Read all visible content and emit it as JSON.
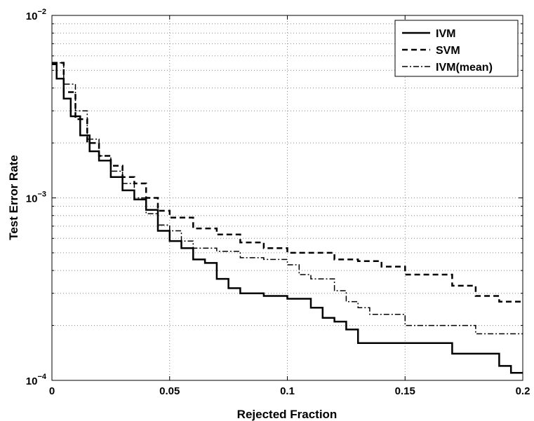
{
  "chart_data": {
    "type": "line",
    "xlabel": "Rejected Fraction",
    "ylabel": "Test Error Rate",
    "xlim": [
      0,
      0.2
    ],
    "ylim": [
      0.0001,
      0.01
    ],
    "y_scale": "log",
    "grid": true,
    "legend_position": "top-right",
    "x_ticks": [
      {
        "value": 0,
        "label": "0"
      },
      {
        "value": 0.05,
        "label": "0.05"
      },
      {
        "value": 0.1,
        "label": "0.1"
      },
      {
        "value": 0.15,
        "label": "0.15"
      },
      {
        "value": 0.2,
        "label": "0.2"
      }
    ],
    "y_ticks": [
      {
        "value": 0.0001,
        "base": "10",
        "exp": "−4"
      },
      {
        "value": 0.001,
        "base": "10",
        "exp": "−3"
      },
      {
        "value": 0.01,
        "base": "10",
        "exp": "−2"
      }
    ],
    "series": [
      {
        "name": "IVM",
        "style": "solid",
        "points": [
          [
            0,
            0.0054
          ],
          [
            0.002,
            0.0045
          ],
          [
            0.005,
            0.0035
          ],
          [
            0.008,
            0.0028
          ],
          [
            0.012,
            0.0022
          ],
          [
            0.016,
            0.0018
          ],
          [
            0.02,
            0.0016
          ],
          [
            0.025,
            0.0013
          ],
          [
            0.03,
            0.0011
          ],
          [
            0.035,
            0.00098
          ],
          [
            0.04,
            0.00086
          ],
          [
            0.045,
            0.00066
          ],
          [
            0.05,
            0.00058
          ],
          [
            0.055,
            0.00053
          ],
          [
            0.06,
            0.00046
          ],
          [
            0.065,
            0.00044
          ],
          [
            0.07,
            0.00036
          ],
          [
            0.075,
            0.00032
          ],
          [
            0.08,
            0.0003
          ],
          [
            0.09,
            0.00029
          ],
          [
            0.1,
            0.00028
          ],
          [
            0.11,
            0.00025
          ],
          [
            0.115,
            0.00022
          ],
          [
            0.12,
            0.00021
          ],
          [
            0.125,
            0.00019
          ],
          [
            0.13,
            0.00016
          ],
          [
            0.14,
            0.00016
          ],
          [
            0.15,
            0.00016
          ],
          [
            0.16,
            0.00016
          ],
          [
            0.17,
            0.00014
          ],
          [
            0.18,
            0.00014
          ],
          [
            0.19,
            0.00012
          ],
          [
            0.195,
            0.00011
          ],
          [
            0.2,
            0.00011
          ]
        ]
      },
      {
        "name": "SVM",
        "style": "dashed",
        "points": [
          [
            0,
            0.0055
          ],
          [
            0.005,
            0.0038
          ],
          [
            0.01,
            0.0027
          ],
          [
            0.015,
            0.002
          ],
          [
            0.02,
            0.0017
          ],
          [
            0.025,
            0.0015
          ],
          [
            0.03,
            0.0013
          ],
          [
            0.035,
            0.0012
          ],
          [
            0.04,
            0.001
          ],
          [
            0.045,
            0.00085
          ],
          [
            0.05,
            0.00078
          ],
          [
            0.06,
            0.00068
          ],
          [
            0.07,
            0.00063
          ],
          [
            0.08,
            0.00057
          ],
          [
            0.09,
            0.00053
          ],
          [
            0.1,
            0.0005
          ],
          [
            0.11,
            0.0005
          ],
          [
            0.12,
            0.00046
          ],
          [
            0.13,
            0.00045
          ],
          [
            0.14,
            0.00042
          ],
          [
            0.15,
            0.00038
          ],
          [
            0.16,
            0.00038
          ],
          [
            0.17,
            0.00033
          ],
          [
            0.18,
            0.00029
          ],
          [
            0.19,
            0.00027
          ],
          [
            0.2,
            0.00027
          ]
        ]
      },
      {
        "name": "IVM(mean)",
        "style": "dashdot",
        "points": [
          [
            0,
            0.0055
          ],
          [
            0.005,
            0.0042
          ],
          [
            0.01,
            0.003
          ],
          [
            0.015,
            0.0021
          ],
          [
            0.02,
            0.0017
          ],
          [
            0.025,
            0.0014
          ],
          [
            0.03,
            0.0012
          ],
          [
            0.035,
            0.001
          ],
          [
            0.04,
            0.00082
          ],
          [
            0.045,
            0.00071
          ],
          [
            0.05,
            0.00066
          ],
          [
            0.055,
            0.00058
          ],
          [
            0.06,
            0.00053
          ],
          [
            0.07,
            0.00051
          ],
          [
            0.08,
            0.00047
          ],
          [
            0.09,
            0.00046
          ],
          [
            0.1,
            0.00043
          ],
          [
            0.105,
            0.00038
          ],
          [
            0.11,
            0.00036
          ],
          [
            0.115,
            0.00036
          ],
          [
            0.12,
            0.00031
          ],
          [
            0.125,
            0.00027
          ],
          [
            0.13,
            0.00025
          ],
          [
            0.135,
            0.00023
          ],
          [
            0.14,
            0.00023
          ],
          [
            0.145,
            0.00023
          ],
          [
            0.15,
            0.0002
          ],
          [
            0.16,
            0.0002
          ],
          [
            0.17,
            0.0002
          ],
          [
            0.18,
            0.00018
          ],
          [
            0.19,
            0.00018
          ],
          [
            0.2,
            0.00018
          ]
        ]
      }
    ]
  }
}
